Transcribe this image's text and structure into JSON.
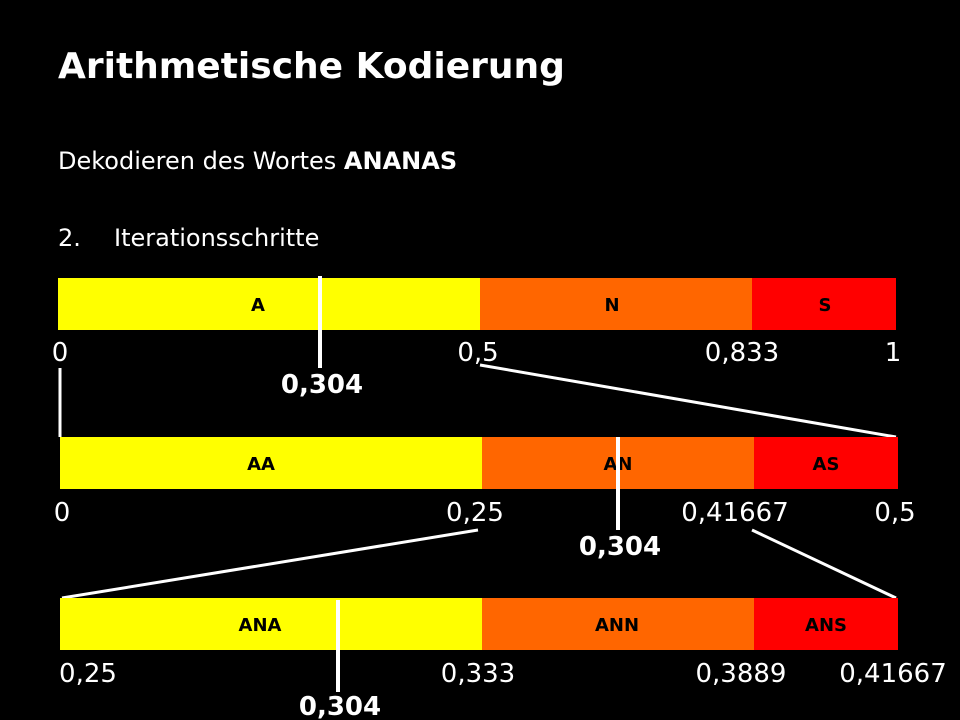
{
  "title": "Arithmetische Kodierung",
  "subtitle": {
    "text": "Dekodieren des Wortes",
    "word": "ANANAS"
  },
  "step": {
    "number": "2.",
    "text": "Iterationsschritte"
  },
  "rows": [
    {
      "segments": [
        "A",
        "N",
        "S"
      ],
      "boundaries": [
        "0",
        "0,5",
        "0,833",
        "1"
      ],
      "marker": "0,304"
    },
    {
      "segments": [
        "AA",
        "AN",
        "AS"
      ],
      "boundaries": [
        "0",
        "0,25",
        "0,41667",
        "0,5"
      ],
      "marker": "0,304"
    },
    {
      "segments": [
        "ANA",
        "ANN",
        "ANS"
      ],
      "boundaries": [
        "0,25",
        "0,333",
        "0,3889",
        "0,41667"
      ],
      "marker": "0,304"
    }
  ]
}
